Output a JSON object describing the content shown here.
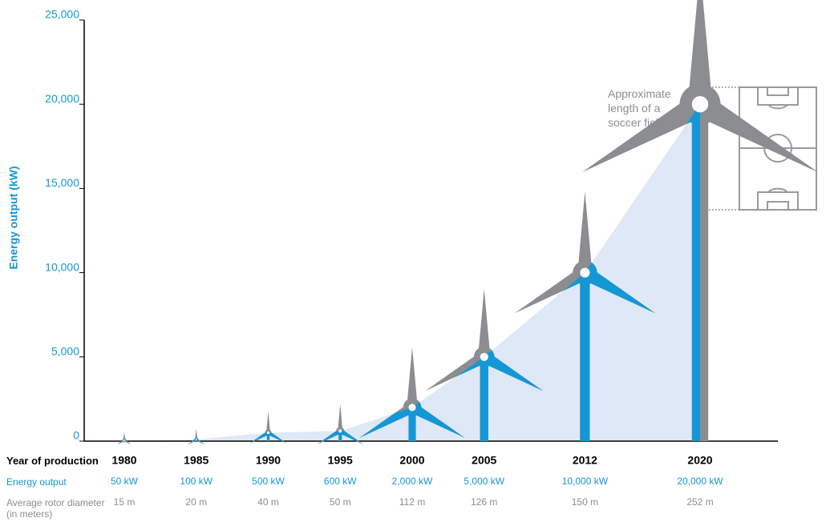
{
  "chart_data": {
    "type": "turbine",
    "y_label": "Energy output (kW)",
    "ylim": [
      0,
      25000
    ],
    "yticks": [
      0,
      {
        "value": 5000,
        "label": "5,000"
      },
      {
        "value": 10000,
        "label": "10,000"
      },
      {
        "value": 15000,
        "label": "15,000"
      },
      {
        "value": 20000,
        "label": "20,000"
      },
      {
        "value": 25000,
        "label": "25,000"
      }
    ],
    "x_label": "Year of production",
    "x": [
      1980,
      1985,
      1990,
      1995,
      2000,
      2005,
      2012,
      2020
    ],
    "series": [
      {
        "name": "Energy output",
        "color": "#1497d5",
        "values": [
          50,
          100,
          500,
          600,
          2000,
          5000,
          10000,
          20000
        ],
        "value_labels": [
          "50 kW",
          "100 kW",
          "500 kW",
          "600 kW",
          "2,000 kW",
          "5,000 kW",
          "10,000 kW",
          "20,000 kW"
        ]
      },
      {
        "name": "Average rotor diameter (in meters)",
        "color": "#8b8d90",
        "values": [
          15,
          20,
          40,
          50,
          112,
          126,
          150,
          252
        ],
        "value_labels": [
          "15 m",
          "20 m",
          "40 m",
          "50 m",
          "112 m",
          "126 m",
          "150 m",
          "252 m"
        ]
      }
    ],
    "area_color": "#dfe8f6",
    "annotation": "Approximate length of a soccer field"
  }
}
